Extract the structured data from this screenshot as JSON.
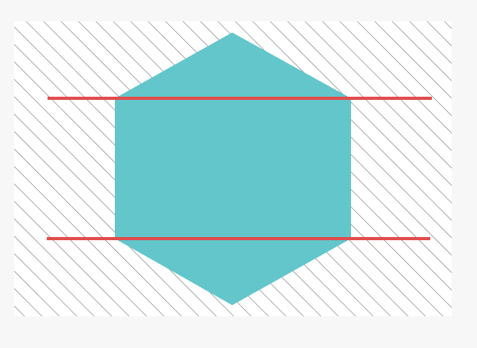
{
  "colors": {
    "page_background": "#f7f7f7",
    "panel_background": "#ffffff",
    "hatch_line": "#9a9a9a",
    "hexagon_fill": "#62c6cb",
    "guide_line": "#e14d4d"
  },
  "diagram": {
    "shape": "hexagon",
    "pattern": "diagonal-hatch",
    "horizontal_guides": 2
  }
}
